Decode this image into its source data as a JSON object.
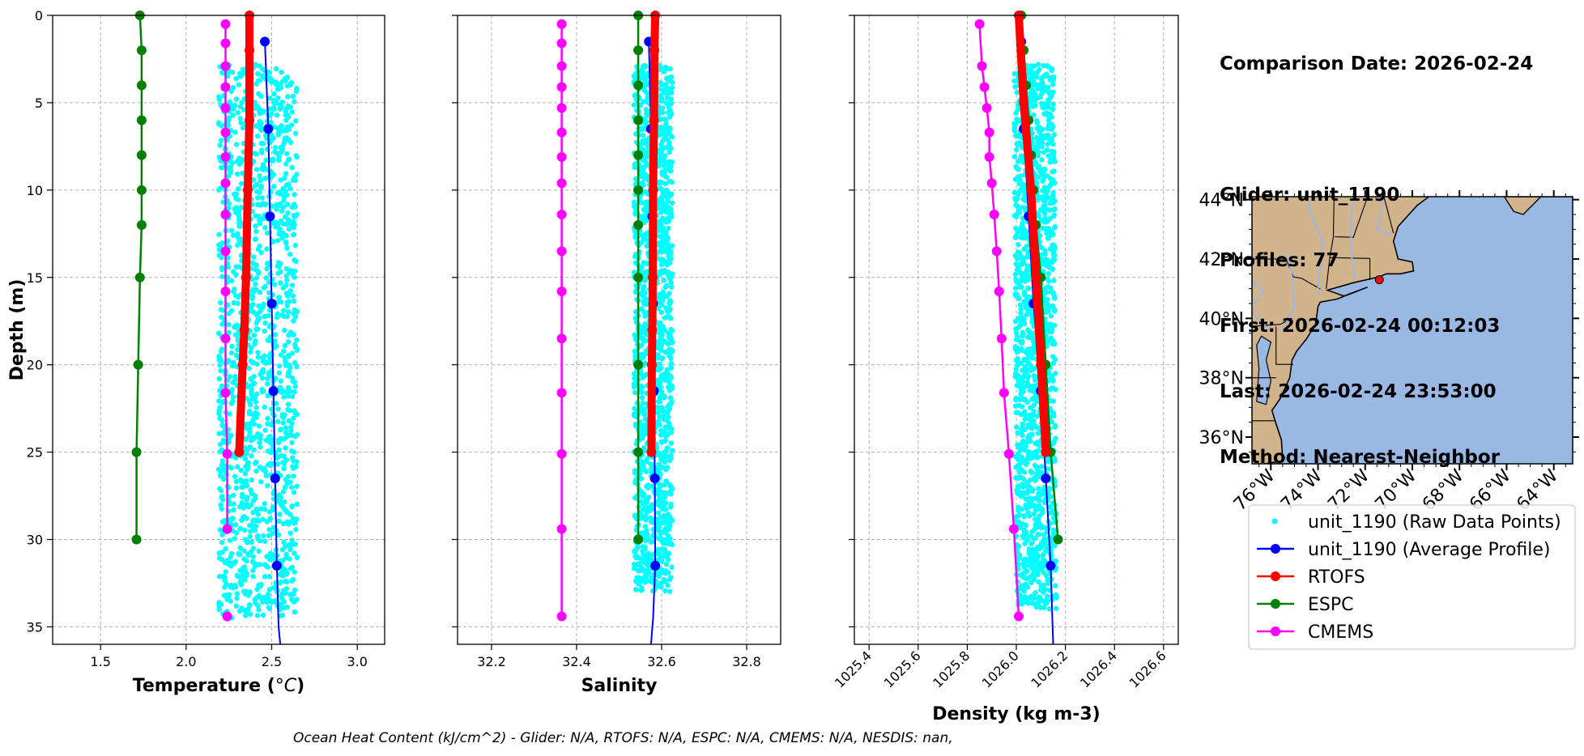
{
  "info": {
    "comparison_date": "Comparison Date: 2026-02-24",
    "glider": "Glider: unit_1190",
    "profiles": "Profiles: 77",
    "first": "First: 2026-02-24 00:12:03",
    "last": "Last: 2026-02-24 23:53:00",
    "method": "Method: Nearest-Neighbor"
  },
  "footer": "Ocean Heat Content (kJ/cm^2) - Glider: N/A,  RTOFS: N/A,  ESPC: N/A,  CMEMS: N/A,  NESDIS: nan,",
  "colors": {
    "raw": "#00ffff",
    "glider": "#0000ff",
    "rtofs": "#ff0000",
    "espc": "#008000",
    "cmems": "#ff00ff",
    "land": "#d2b48c",
    "ocean": "#9ab8e4",
    "grid": "#b0b0b0"
  },
  "chart_data": [
    {
      "type": "line",
      "xlabel": "Temperature (°C)",
      "ylabel": "Depth (m)",
      "xlim": [
        1.22,
        3.16
      ],
      "ylim": [
        36,
        0
      ],
      "xticks": [
        1.5,
        2.0,
        2.5,
        3.0
      ],
      "xtick_labels": [
        "1.5",
        "2.0",
        "2.5",
        "3.0"
      ],
      "yticks": [
        0,
        5,
        10,
        15,
        20,
        25,
        30,
        35
      ],
      "grid": true,
      "raw_band": {
        "x_min": 2.19,
        "x_max": 2.65,
        "depth_min": 2.8,
        "depth_max": 34.5
      },
      "series": [
        {
          "name": "unit_1190 (Average Profile)",
          "x": [
            2.46,
            2.48,
            2.49,
            2.5,
            2.51,
            2.52,
            2.53,
            2.54,
            2.55
          ],
          "y": [
            1.5,
            6.5,
            11.5,
            16.5,
            21.5,
            26.5,
            31.5,
            35.0,
            36.0
          ]
        },
        {
          "name": "RTOFS",
          "x": [
            2.37,
            2.37,
            2.37,
            2.36,
            2.35,
            2.34,
            2.33,
            2.31
          ],
          "y": [
            0,
            2,
            6,
            10,
            15,
            18,
            20,
            25
          ]
        },
        {
          "name": "ESPC",
          "x": [
            1.73,
            1.74,
            1.74,
            1.74,
            1.74,
            1.74,
            1.74,
            1.73,
            1.72,
            1.71,
            1.71
          ],
          "y": [
            0,
            2,
            4,
            6,
            8,
            10,
            12,
            15,
            20,
            25,
            30
          ]
        },
        {
          "name": "CMEMS",
          "x": [
            2.23,
            2.23,
            2.23,
            2.23,
            2.23,
            2.23,
            2.23,
            2.23,
            2.23,
            2.23,
            2.23,
            2.23,
            2.23,
            2.24,
            2.24
          ],
          "y": [
            0.5,
            1.6,
            2.9,
            4.1,
            5.3,
            6.7,
            8.1,
            9.6,
            11.4,
            13.5,
            15.8,
            18.5,
            21.6,
            25.1,
            29.4
          ]
        },
        {
          "name": "CMEMS",
          "x": [
            2.24
          ],
          "y": [
            34.4
          ]
        }
      ]
    },
    {
      "type": "line",
      "xlabel": "Salinity",
      "xlim": [
        32.12,
        32.88
      ],
      "ylim": [
        36,
        0
      ],
      "xticks": [
        32.2,
        32.4,
        32.6,
        32.8
      ],
      "xtick_labels": [
        "32.2",
        "32.4",
        "32.6",
        "32.8"
      ],
      "yticks": [
        0,
        5,
        10,
        15,
        20,
        25,
        30,
        35
      ],
      "grid": true,
      "raw_band": {
        "x_min": 32.535,
        "x_max": 32.625,
        "depth_min": 2.8,
        "depth_max": 33.0
      },
      "series": [
        {
          "name": "unit_1190 (Average Profile)",
          "x": [
            32.57,
            32.575,
            32.578,
            32.58,
            32.582,
            32.584,
            32.585,
            32.58,
            32.575
          ],
          "y": [
            1.5,
            6.5,
            11.5,
            16.5,
            21.5,
            26.5,
            31.5,
            34.5,
            36.0
          ]
        },
        {
          "name": "RTOFS",
          "x": [
            32.585,
            32.583,
            32.582,
            32.58,
            32.579,
            32.578,
            32.577,
            32.576
          ],
          "y": [
            0,
            2,
            6,
            10,
            15,
            18,
            20,
            25
          ]
        },
        {
          "name": "ESPC",
          "x": [
            32.545,
            32.545,
            32.545,
            32.545,
            32.545,
            32.545,
            32.545,
            32.545,
            32.545,
            32.545,
            32.545
          ],
          "y": [
            0,
            2,
            4,
            6,
            8,
            10,
            12,
            15,
            20,
            25,
            30
          ]
        },
        {
          "name": "CMEMS",
          "x": [
            32.365,
            32.365,
            32.365,
            32.365,
            32.365,
            32.365,
            32.365,
            32.365,
            32.365,
            32.365,
            32.365,
            32.365,
            32.365,
            32.365,
            32.365,
            32.365
          ],
          "y": [
            0.5,
            1.6,
            2.9,
            4.1,
            5.3,
            6.7,
            8.1,
            9.6,
            11.4,
            13.5,
            15.8,
            18.5,
            21.6,
            25.1,
            29.4,
            34.4
          ]
        }
      ]
    },
    {
      "type": "line",
      "xlabel": "Density (kg m-3)",
      "xlim": [
        1025.34,
        1026.66
      ],
      "ylim": [
        36,
        0
      ],
      "xticks": [
        1025.4,
        1025.6,
        1025.8,
        1026.0,
        1026.2,
        1026.4,
        1026.6
      ],
      "xtick_labels": [
        "1025.4",
        "1025.6",
        "1025.8",
        "1026.0",
        "1026.2",
        "1026.4",
        "1026.6"
      ],
      "yticks": [
        0,
        5,
        10,
        15,
        20,
        25,
        30,
        35
      ],
      "grid": true,
      "raw_band": {
        "x_min": 1025.99,
        "x_max": 1026.16,
        "depth_min": 2.8,
        "depth_max": 34.0,
        "tilt": 0.09
      },
      "series": [
        {
          "name": "unit_1190 (Average Profile)",
          "x": [
            1026.02,
            1026.03,
            1026.05,
            1026.07,
            1026.1,
            1026.12,
            1026.14,
            1026.15
          ],
          "y": [
            1.5,
            6.5,
            11.5,
            16.5,
            21.5,
            26.5,
            31.5,
            36.0
          ]
        },
        {
          "name": "RTOFS",
          "x": [
            1026.01,
            1026.03,
            1026.06,
            1026.08,
            1026.1,
            1026.12
          ],
          "y": [
            0,
            5,
            10,
            15,
            20,
            25
          ]
        },
        {
          "name": "ESPC",
          "x": [
            1026.02,
            1026.03,
            1026.04,
            1026.05,
            1026.06,
            1026.07,
            1026.08,
            1026.1,
            1026.12,
            1026.14,
            1026.17
          ],
          "y": [
            0,
            2,
            4,
            6,
            8,
            10,
            12,
            15,
            20,
            25,
            30
          ]
        },
        {
          "name": "CMEMS",
          "x": [
            1025.85,
            1025.86,
            1025.87,
            1025.88,
            1025.89,
            1025.89,
            1025.9,
            1025.91,
            1025.92,
            1025.93,
            1025.94,
            1025.95,
            1025.97,
            1025.99,
            1026.01
          ],
          "y": [
            0.5,
            2.9,
            4.1,
            5.3,
            6.7,
            8.1,
            9.6,
            11.4,
            13.5,
            15.8,
            18.5,
            21.6,
            25.1,
            29.4,
            34.4
          ]
        }
      ]
    }
  ],
  "legend": [
    {
      "label": "unit_1190 (Raw Data Points)",
      "style": "dot",
      "color": "#00ffff"
    },
    {
      "label": "unit_1190 (Average Profile)",
      "style": "line-marker",
      "color": "#0000ff"
    },
    {
      "label": "RTOFS",
      "style": "line-marker",
      "color": "#ff0000"
    },
    {
      "label": "ESPC",
      "style": "line-marker",
      "color": "#008000"
    },
    {
      "label": "CMEMS",
      "style": "line-marker",
      "color": "#ff00ff"
    }
  ],
  "map": {
    "lat_ticks": [
      44,
      42,
      40,
      38,
      36
    ],
    "lat_labels": [
      "44°N",
      "42°N",
      "40°N",
      "38°N",
      "36°N"
    ],
    "lon_ticks": [
      -76,
      -74,
      -72,
      -70,
      -68,
      -66,
      -64
    ],
    "lon_labels": [
      "76°W",
      "74°W",
      "72°W",
      "70°W",
      "68°W",
      "66°W",
      "64°W"
    ],
    "lon_range": [
      -76.8,
      -63.2
    ],
    "lat_range": [
      35.1,
      44.1
    ],
    "glider_position": {
      "lon": -71.4,
      "lat": 41.3
    }
  }
}
